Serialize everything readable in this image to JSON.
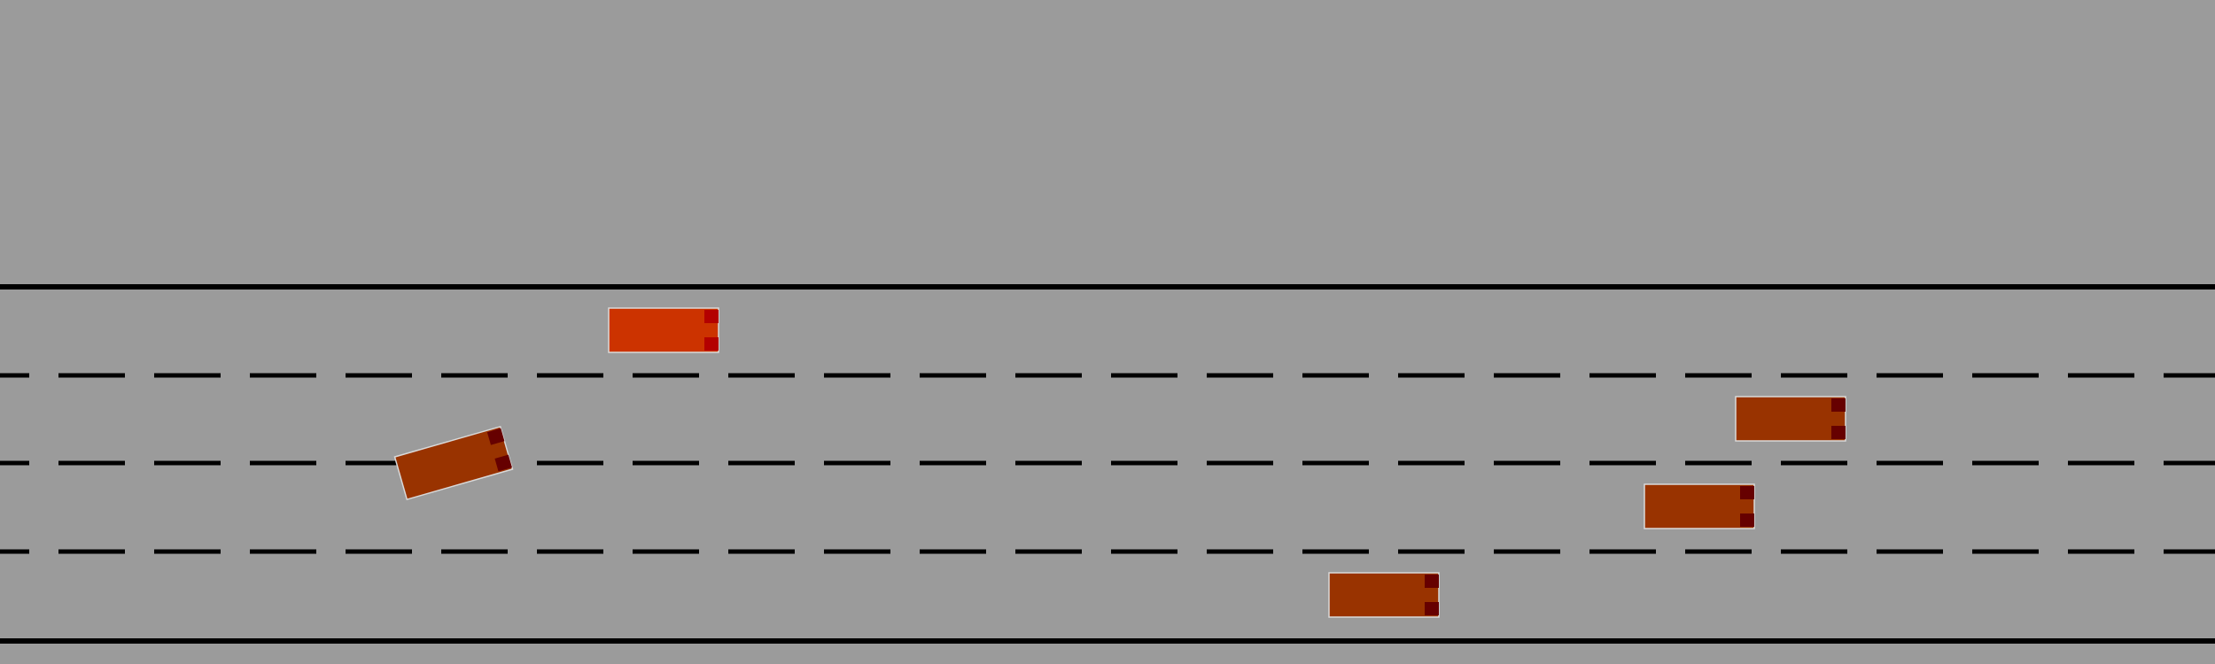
{
  "scene": {
    "background_color": "#9b9b9b",
    "road_edge_color": "#000000",
    "lane_marking_color": "#000000",
    "lane_count": 4,
    "lane_boundary_style": "dashed"
  },
  "vehicles": [
    {
      "name": "ego-vehicle",
      "role": "ego",
      "lane": 1,
      "heading": "right",
      "color": "#cc3300",
      "light_color": "#b30000"
    },
    {
      "name": "vehicle-1",
      "role": "other",
      "lane": 2,
      "heading": "right-tilted-up",
      "color": "#993300",
      "light_color": "#660000"
    },
    {
      "name": "vehicle-2",
      "role": "other",
      "lane": 2,
      "heading": "right",
      "color": "#993300",
      "light_color": "#660000"
    },
    {
      "name": "vehicle-3",
      "role": "other",
      "lane": 3,
      "heading": "right",
      "color": "#993300",
      "light_color": "#660000"
    },
    {
      "name": "vehicle-4",
      "role": "other",
      "lane": 4,
      "heading": "right",
      "color": "#993300",
      "light_color": "#660000"
    }
  ]
}
